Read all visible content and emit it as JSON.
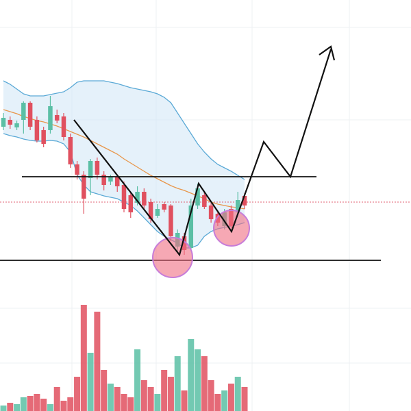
{
  "chart_data": {
    "type": "candlestick",
    "up_color": "#5bbfa5",
    "down_color": "#e0505f",
    "ylim": [
      0,
      600
    ],
    "open": [
      415,
      425,
      414,
      425,
      450,
      425,
      410,
      410,
      432,
      430,
      400,
      360,
      345,
      340,
      365,
      345,
      335,
      342,
      330,
      315,
      304,
      320,
      305,
      285,
      302,
      300,
      240,
      255,
      238,
      300,
      315,
      300,
      288,
      270,
      295,
      290,
      314
    ],
    "high": [
      435,
      430,
      424,
      452,
      452,
      430,
      415,
      460,
      440,
      435,
      405,
      365,
      350,
      368,
      370,
      350,
      345,
      345,
      335,
      320,
      328,
      325,
      310,
      302,
      305,
      302,
      265,
      260,
      310,
      332,
      320,
      305,
      292,
      295,
      300,
      320,
      318
    ],
    "low": [
      410,
      412,
      410,
      405,
      410,
      392,
      385,
      405,
      420,
      395,
      355,
      338,
      288,
      315,
      338,
      322,
      330,
      320,
      290,
      282,
      300,
      295,
      275,
      282,
      290,
      248,
      232,
      228,
      235,
      295,
      295,
      275,
      270,
      265,
      267,
      288,
      295
    ],
    "close": [
      428,
      418,
      420,
      450,
      415,
      395,
      390,
      445,
      424,
      400,
      360,
      345,
      310,
      365,
      345,
      330,
      342,
      328,
      295,
      290,
      320,
      300,
      280,
      295,
      294,
      255,
      260,
      235,
      300,
      325,
      298,
      280,
      275,
      290,
      270,
      308,
      300
    ],
    "volume": [
      8,
      12,
      10,
      20,
      22,
      25,
      18,
      10,
      35,
      15,
      20,
      50,
      155,
      85,
      145,
      60,
      40,
      35,
      25,
      20,
      90,
      45,
      35,
      25,
      60,
      50,
      80,
      30,
      105,
      90,
      80,
      45,
      25,
      30,
      40,
      50,
      35
    ],
    "volume_ylim": [
      0,
      200
    ],
    "bands": {
      "upper_color": "#5aa9d6",
      "middle_color": "#e8964a",
      "fill_color": "#cfe6f5",
      "upper": [
        482,
        477,
        470,
        463,
        460,
        460,
        460,
        462,
        464,
        466,
        472,
        480,
        482,
        482,
        482,
        482,
        480,
        478,
        475,
        472,
        470,
        468,
        466,
        463,
        458,
        450,
        435,
        420,
        405,
        390,
        378,
        368,
        360,
        355,
        350,
        344,
        338
      ],
      "middle": [
        440,
        437,
        434,
        430,
        427,
        424,
        422,
        419,
        416,
        412,
        408,
        404,
        400,
        395,
        390,
        385,
        380,
        375,
        368,
        362,
        356,
        350,
        344,
        339,
        334,
        329,
        325,
        322,
        318,
        314,
        310,
        305,
        302,
        300,
        298,
        297,
        295
      ],
      "lower": [
        405,
        402,
        400,
        397,
        395,
        394,
        394,
        395,
        394,
        390,
        378,
        345,
        330,
        320,
        317,
        314,
        312,
        310,
        305,
        300,
        292,
        282,
        272,
        262,
        255,
        250,
        245,
        238,
        238,
        242,
        255,
        262,
        266,
        268,
        270,
        272,
        275
      ]
    }
  }
}
